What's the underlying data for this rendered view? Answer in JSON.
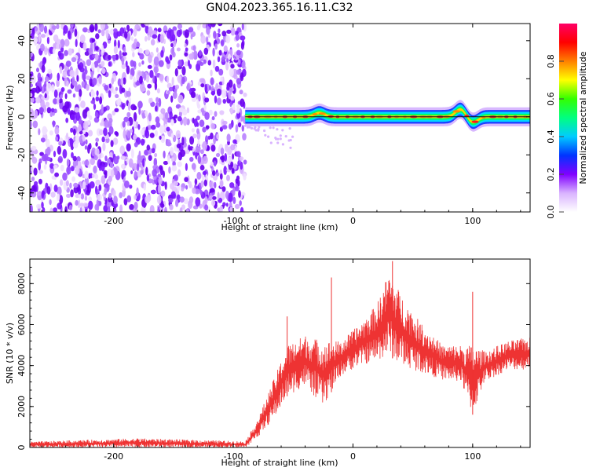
{
  "title": "GN04.2023.365.16.11.C32",
  "chart_data": [
    {
      "type": "heatmap",
      "xlabel": "Height of straight line (km)",
      "ylabel": "Frequency (Hz)",
      "xlim": [
        -270,
        148
      ],
      "ylim": [
        -50,
        49
      ],
      "xticks": [
        "-200",
        "-100",
        "0",
        "100"
      ],
      "yticks": [
        "40",
        "20",
        "0",
        "-20",
        "-40"
      ],
      "grid": false,
      "colorbar": {
        "label": "Normalized spectral amplitude",
        "range": [
          0,
          1
        ],
        "ticks": [
          "0.0",
          "0.2",
          "0.4",
          "0.6",
          "0.8"
        ],
        "colors": [
          "#ffffff",
          "#d9b3ff",
          "#8000ff",
          "#0033ff",
          "#00ccff",
          "#00ff80",
          "#33ff00",
          "#ffff00",
          "#ff8000",
          "#ff0000",
          "#ff0066"
        ]
      },
      "features": {
        "noise_region_x": [
          -270,
          -90
        ],
        "trace_region_x": [
          -90,
          148
        ],
        "trace_frequency_hz": 0,
        "trace_bumps": [
          {
            "x": -28,
            "freq": 2
          },
          {
            "x": 90,
            "freq": 4
          },
          {
            "x": 100,
            "freq": -3
          }
        ]
      }
    },
    {
      "type": "line",
      "xlabel": "Height of straight line (km)",
      "ylabel": "SNR (10 * v/v)",
      "xlim": [
        -270,
        148
      ],
      "ylim": [
        0,
        9200
      ],
      "xticks": [
        "-200",
        "-100",
        "0",
        "100"
      ],
      "yticks": [
        "0",
        "2000",
        "4000",
        "6000",
        "8000"
      ],
      "color": "#ee3333",
      "envelope": [
        {
          "x": -270,
          "lo": 0,
          "hi": 280
        },
        {
          "x": -180,
          "lo": 0,
          "hi": 450
        },
        {
          "x": -90,
          "lo": 0,
          "hi": 300
        },
        {
          "x": -85,
          "lo": 200,
          "hi": 800
        },
        {
          "x": -78,
          "lo": 600,
          "hi": 1600
        },
        {
          "x": -65,
          "lo": 1500,
          "hi": 3500
        },
        {
          "x": -55,
          "lo": 2500,
          "hi": 5000
        },
        {
          "x": -40,
          "lo": 3000,
          "hi": 5500
        },
        {
          "x": -25,
          "lo": 2000,
          "hi": 5200
        },
        {
          "x": -10,
          "lo": 3500,
          "hi": 5200
        },
        {
          "x": 5,
          "lo": 4000,
          "hi": 6000
        },
        {
          "x": 20,
          "lo": 4200,
          "hi": 7000
        },
        {
          "x": 30,
          "lo": 4500,
          "hi": 8600
        },
        {
          "x": 40,
          "lo": 4000,
          "hi": 7500
        },
        {
          "x": 55,
          "lo": 3700,
          "hi": 6200
        },
        {
          "x": 75,
          "lo": 3300,
          "hi": 5000
        },
        {
          "x": 90,
          "lo": 3200,
          "hi": 5000
        },
        {
          "x": 100,
          "lo": 1600,
          "hi": 5000
        },
        {
          "x": 110,
          "lo": 3200,
          "hi": 4700
        },
        {
          "x": 130,
          "lo": 3800,
          "hi": 5200
        },
        {
          "x": 148,
          "lo": 3800,
          "hi": 5400
        }
      ],
      "spikes": [
        {
          "x": -18,
          "y": 8300
        },
        {
          "x": 33,
          "y": 9100
        },
        {
          "x": 100,
          "y": 7600
        },
        {
          "x": 100.5,
          "y": 1300
        },
        {
          "x": -25,
          "y": 1800
        },
        {
          "x": -55,
          "y": 6400
        }
      ]
    }
  ]
}
